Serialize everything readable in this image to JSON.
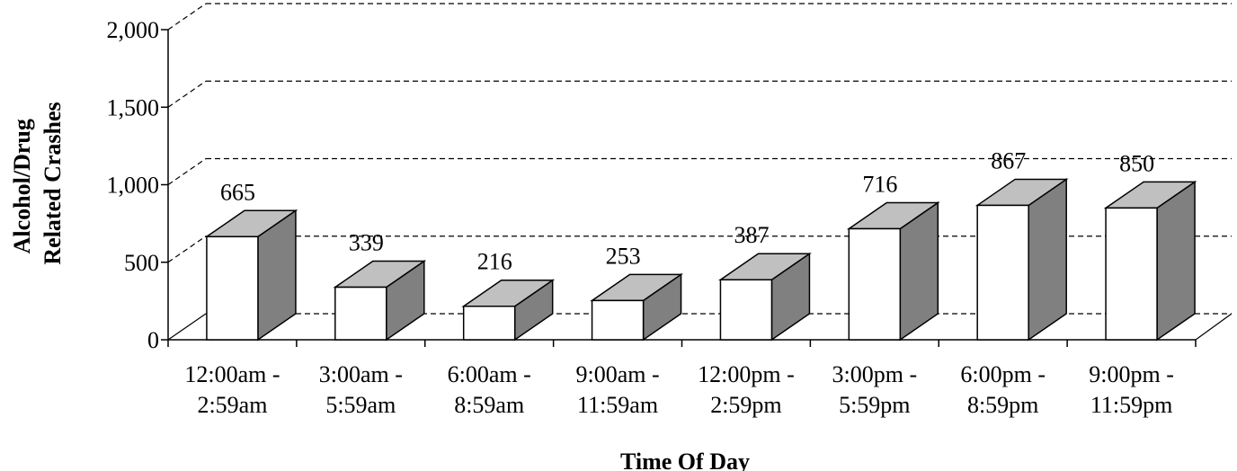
{
  "chart_data": {
    "type": "bar",
    "categories": [
      [
        "12:00am -",
        "2:59am"
      ],
      [
        "3:00am -",
        "5:59am"
      ],
      [
        "6:00am -",
        "8:59am"
      ],
      [
        "9:00am -",
        "11:59am"
      ],
      [
        "12:00pm -",
        "2:59pm"
      ],
      [
        "3:00pm -",
        "5:59pm"
      ],
      [
        "6:00pm -",
        "8:59pm"
      ],
      [
        "9:00pm -",
        "11:59pm"
      ]
    ],
    "values": [
      665,
      339,
      216,
      253,
      387,
      716,
      867,
      850
    ],
    "value_labels": [
      "665",
      "339",
      "216",
      "253",
      "387",
      "716",
      "867",
      "850"
    ],
    "yticks": [
      0,
      500,
      1000,
      1500,
      2000
    ],
    "ytick_labels": [
      "0",
      "500",
      "1,000",
      "1,500",
      "2,000"
    ],
    "ylim": [
      0,
      2000
    ],
    "xlabel": "Time Of Day",
    "ylabel": [
      "Alcohol/Drug",
      "Related Crashes"
    ],
    "grid": true,
    "style": "3d-column",
    "colors": {
      "front": "#ffffff",
      "top": "#c0c0c0",
      "side": "#808080",
      "stroke": "#000000"
    }
  }
}
